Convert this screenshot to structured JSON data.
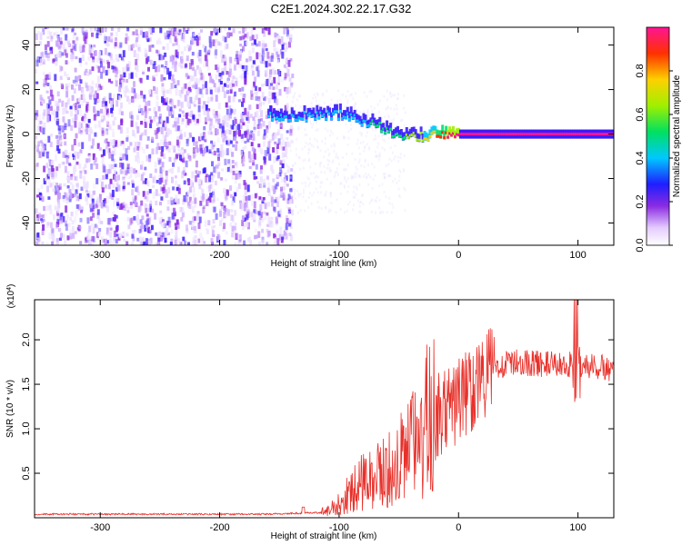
{
  "title": "C2E1.2024.302.22.17.G32",
  "chart_data": [
    {
      "type": "heatmap",
      "xlabel": "Height of straight line (km)",
      "ylabel": "Frequency (Hz)",
      "xlim": [
        -355,
        130
      ],
      "ylim": [
        -50,
        48
      ],
      "xticks": [
        -300,
        -200,
        -100,
        0,
        100
      ],
      "xtick_labels": [
        "-300",
        "-200",
        "-100",
        "0",
        "100"
      ],
      "yticks": [
        -40,
        -20,
        0,
        20,
        40
      ],
      "ytick_labels": [
        "-40",
        "-20",
        "0",
        "20",
        "40"
      ],
      "colorbar": {
        "label": "Normalized spectral amplitude",
        "range": [
          0,
          1
        ],
        "ticks": [
          0.0,
          0.2,
          0.4,
          0.6,
          0.8
        ],
        "tick_labels": [
          "0.0",
          "0.2",
          "0.4",
          "0.6",
          "0.8"
        ]
      },
      "ridge": [
        {
          "x": -120,
          "f": 8,
          "amp": 0.45
        },
        {
          "x": -105,
          "f": 9,
          "amp": 0.5
        },
        {
          "x": -90,
          "f": 7,
          "amp": 0.45
        },
        {
          "x": -75,
          "f": 5,
          "amp": 0.5
        },
        {
          "x": -60,
          "f": 1,
          "amp": 0.55
        },
        {
          "x": -45,
          "f": -2,
          "amp": 0.6
        },
        {
          "x": -30,
          "f": -1,
          "amp": 0.7
        },
        {
          "x": -15,
          "f": 0,
          "amp": 0.85
        },
        {
          "x": 0,
          "f": 0,
          "amp": 1.0
        },
        {
          "x": 50,
          "f": 0,
          "amp": 1.0
        },
        {
          "x": 100,
          "f": 0,
          "amp": 1.0
        },
        {
          "x": 130,
          "f": 0,
          "amp": 1.0
        }
      ]
    },
    {
      "type": "line",
      "xlabel": "Height of straight line (km)",
      "ylabel": "SNR (10 * v/v)",
      "scale_note": "(x10",
      "scale_exp": "4",
      "color": "#e8302a",
      "xlim": [
        -355,
        130
      ],
      "ylim": [
        0,
        2.45
      ],
      "xticks": [
        -300,
        -200,
        -100,
        0,
        100
      ],
      "xtick_labels": [
        "-300",
        "-200",
        "-100",
        "0",
        "100"
      ],
      "yticks": [
        0.5,
        1.0,
        1.5,
        2.0
      ],
      "ytick_labels": [
        "0.5",
        "1.0",
        "1.5",
        "2.0"
      ],
      "envelope": [
        {
          "x": -355,
          "y": 0.04
        },
        {
          "x": -160,
          "y": 0.04
        },
        {
          "x": -110,
          "y": 0.06
        },
        {
          "x": -95,
          "y": 0.2
        },
        {
          "x": -80,
          "y": 0.35
        },
        {
          "x": -60,
          "y": 0.45
        },
        {
          "x": -45,
          "y": 0.6
        },
        {
          "x": -30,
          "y": 0.85
        },
        {
          "x": -20,
          "y": 1.1
        },
        {
          "x": -10,
          "y": 1.2
        },
        {
          "x": 10,
          "y": 1.45
        },
        {
          "x": 30,
          "y": 1.7
        },
        {
          "x": 50,
          "y": 1.75
        },
        {
          "x": 80,
          "y": 1.72
        },
        {
          "x": 100,
          "y": 1.72
        },
        {
          "x": 130,
          "y": 1.67
        }
      ]
    }
  ]
}
